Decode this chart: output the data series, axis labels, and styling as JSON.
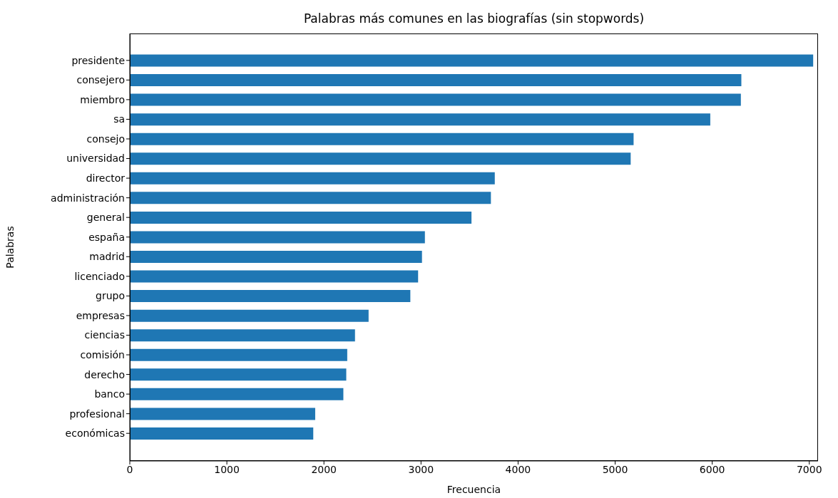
{
  "chart_data": {
    "type": "bar",
    "orientation": "horizontal",
    "title": "Palabras más comunes en las biografías (sin stopwords)",
    "xlabel": "Frecuencia",
    "ylabel": "Palabras",
    "categories": [
      "presidente",
      "consejero",
      "miembro",
      "sa",
      "consejo",
      "universidad",
      "director",
      "administración",
      "general",
      "españa",
      "madrid",
      "licenciado",
      "grupo",
      "empresas",
      "ciencias",
      "comisión",
      "derecho",
      "banco",
      "profesional",
      "económicas"
    ],
    "values": [
      7040,
      6300,
      6295,
      5980,
      5190,
      5160,
      3760,
      3720,
      3520,
      3040,
      3010,
      2970,
      2890,
      2460,
      2320,
      2240,
      2230,
      2200,
      1910,
      1890
    ],
    "color": "#1f77b4",
    "xlim": [
      0,
      7090
    ],
    "xticks": [
      0,
      1000,
      2000,
      3000,
      4000,
      5000,
      6000,
      7000
    ],
    "grid": false
  }
}
